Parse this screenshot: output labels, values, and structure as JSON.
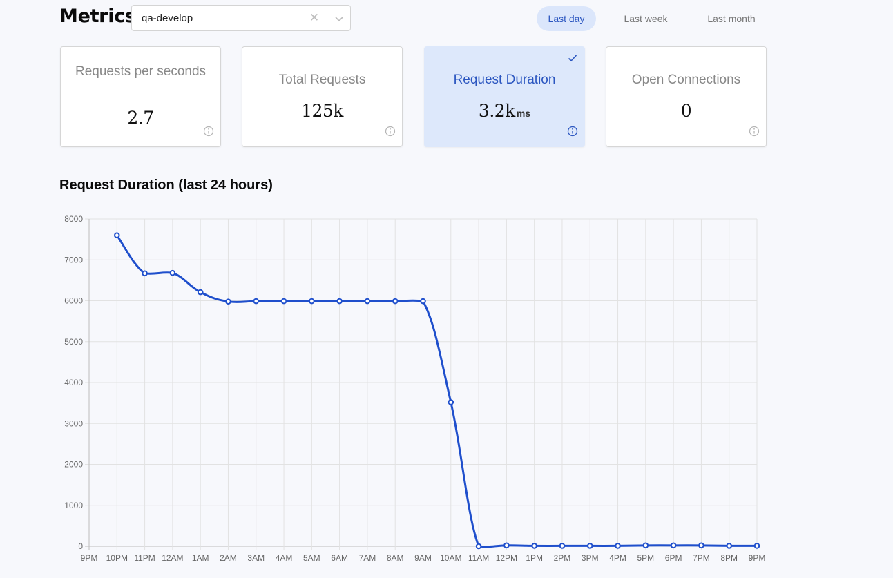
{
  "header": {
    "title": "Metrics",
    "environment": {
      "value": "qa-develop"
    }
  },
  "ranges": [
    "Last day",
    "Last week",
    "Last month"
  ],
  "active_range": "Last day",
  "cards": [
    {
      "title": "Requests per seconds",
      "value": "2.7",
      "unit": ""
    },
    {
      "title": "Total Requests",
      "value": "125k",
      "unit": ""
    },
    {
      "title": "Request Duration",
      "value": "3.2k",
      "unit": "ms"
    },
    {
      "title": "Open Connections",
      "value": "0",
      "unit": ""
    }
  ],
  "selected_card": "Request Duration",
  "colors": {
    "accent": "#1f4fcc",
    "active_bg": "#dbe6fb",
    "grid": "#e2e2e2"
  },
  "chart_data": {
    "type": "line",
    "title": "Request Duration (last 24 hours)",
    "xlabel": "",
    "ylabel": "",
    "ylim": [
      0,
      8000
    ],
    "yticks": [
      0,
      1000,
      2000,
      3000,
      4000,
      5000,
      6000,
      7000,
      8000
    ],
    "categories": [
      "9PM",
      "10PM",
      "11PM",
      "12AM",
      "1AM",
      "2AM",
      "3AM",
      "4AM",
      "5AM",
      "6AM",
      "7AM",
      "8AM",
      "9AM",
      "10AM",
      "11AM",
      "12PM",
      "1PM",
      "2PM",
      "3PM",
      "4PM",
      "5PM",
      "6PM",
      "7PM",
      "8PM",
      "9PM"
    ],
    "series": [
      {
        "name": "Request Duration",
        "values": [
          null,
          7600,
          6670,
          6680,
          6210,
          5980,
          5990,
          5990,
          5990,
          5990,
          5990,
          5990,
          5990,
          3520,
          0,
          20,
          10,
          10,
          10,
          10,
          20,
          20,
          20,
          10,
          10
        ]
      }
    ],
    "grid": true,
    "legend": "none"
  }
}
